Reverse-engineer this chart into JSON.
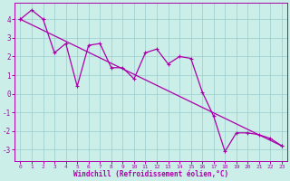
{
  "title": "",
  "xlabel": "Windchill (Refroidissement éolien,°C)",
  "ylabel": "",
  "bg_color": "#cceee8",
  "line_color": "#aa00aa",
  "grid_color": "#99cccc",
  "xlim": [
    -0.5,
    23.5
  ],
  "ylim": [
    -3.6,
    4.9
  ],
  "yticks": [
    -3,
    -2,
    -1,
    0,
    1,
    2,
    3,
    4
  ],
  "xticks": [
    0,
    1,
    2,
    3,
    4,
    5,
    6,
    7,
    8,
    9,
    10,
    11,
    12,
    13,
    14,
    15,
    16,
    17,
    18,
    19,
    20,
    21,
    22,
    23
  ],
  "data_x": [
    0,
    1,
    2,
    3,
    4,
    5,
    6,
    7,
    8,
    9,
    10,
    11,
    12,
    13,
    14,
    15,
    16,
    17,
    18,
    19,
    20,
    21,
    22,
    23
  ],
  "data_y": [
    4.0,
    4.5,
    4.0,
    2.2,
    2.7,
    0.4,
    2.6,
    2.7,
    1.4,
    1.4,
    0.8,
    2.2,
    2.4,
    1.6,
    2.0,
    1.9,
    0.1,
    -1.2,
    -3.1,
    -2.1,
    -2.1,
    -2.2,
    -2.4,
    -2.8
  ],
  "trend_x": [
    0,
    23
  ],
  "trend_y": [
    4.0,
    -2.8
  ]
}
